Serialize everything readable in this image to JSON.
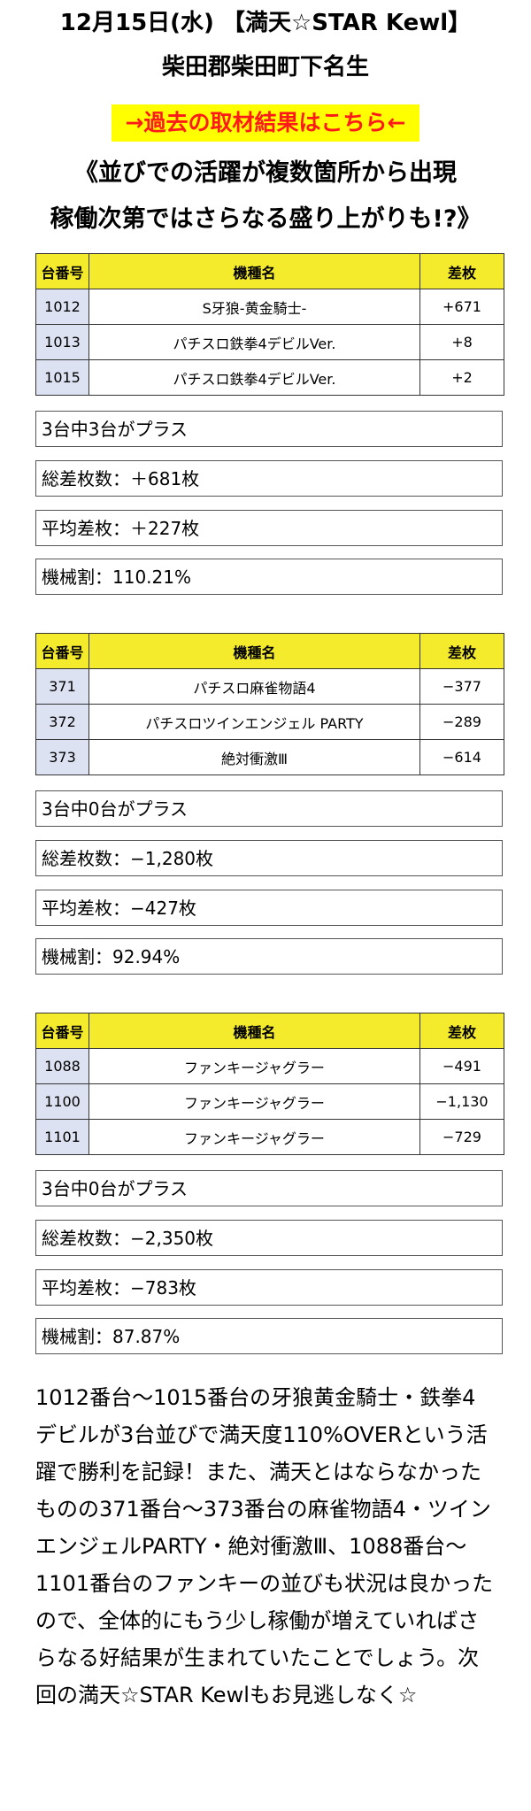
{
  "header": {
    "line1": "12月15日(水) 【満天☆STAR Kewl】",
    "line2": "柴田郡柴田町下名生"
  },
  "past_link": "→過去の取材結果はこちら←",
  "lead": {
    "line1": "《並びでの活躍が複数箇所から出現",
    "line2": "稼働次第ではさらなる盛り上がりも!?》"
  },
  "columns": [
    "台番号",
    "機種名",
    "差枚"
  ],
  "groups": [
    {
      "rows": [
        {
          "no": "1012",
          "name": "S牙狼-黄金騎士-",
          "diff": "+671"
        },
        {
          "no": "1013",
          "name": "パチスロ鉄拳4デビルVer.",
          "diff": "+8"
        },
        {
          "no": "1015",
          "name": "パチスロ鉄拳4デビルVer.",
          "diff": "+2"
        }
      ],
      "summary": [
        "3台中3台がプラス",
        "総差枚数：＋681枚",
        "平均差枚：＋227枚",
        "機械割：110.21%"
      ]
    },
    {
      "rows": [
        {
          "no": "371",
          "name": "パチスロ麻雀物語4",
          "diff": "−377"
        },
        {
          "no": "372",
          "name": "パチスロツインエンジェル PARTY",
          "diff": "−289"
        },
        {
          "no": "373",
          "name": "絶対衝激Ⅲ",
          "diff": "−614"
        }
      ],
      "summary": [
        "3台中0台がプラス",
        "総差枚数：−1,280枚",
        "平均差枚：−427枚",
        "機械割：92.94%"
      ]
    },
    {
      "rows": [
        {
          "no": "1088",
          "name": "ファンキージャグラー",
          "diff": "−491"
        },
        {
          "no": "1100",
          "name": "ファンキージャグラー",
          "diff": "−1,130"
        },
        {
          "no": "1101",
          "name": "ファンキージャグラー",
          "diff": "−729"
        }
      ],
      "summary": [
        "3台中0台がプラス",
        "総差枚数：−2,350枚",
        "平均差枚：−783枚",
        "機械割：87.87%"
      ]
    }
  ],
  "body": "1012番台〜1015番台の牙狼黄金騎士・鉄拳4デビルが3台並びで満天度110%OVERという活躍で勝利を記録！また、満天とはならなかったものの371番台〜373番台の麻雀物語4・ツインエンジェルPARTY・絶対衝激Ⅲ、1088番台〜1101番台のファンキーの並びも状況は良かったので、全体的にもう少し稼働が増えていればさらなる好結果が生まれていたことでしょう。次回の満天☆STAR Kewlもお見逃しなく☆",
  "colors": {
    "header_bg": "#f5eb2d",
    "number_bg": "#dde2f2",
    "link_bg": "#ffff00",
    "link_text": "#ff1a1a"
  }
}
